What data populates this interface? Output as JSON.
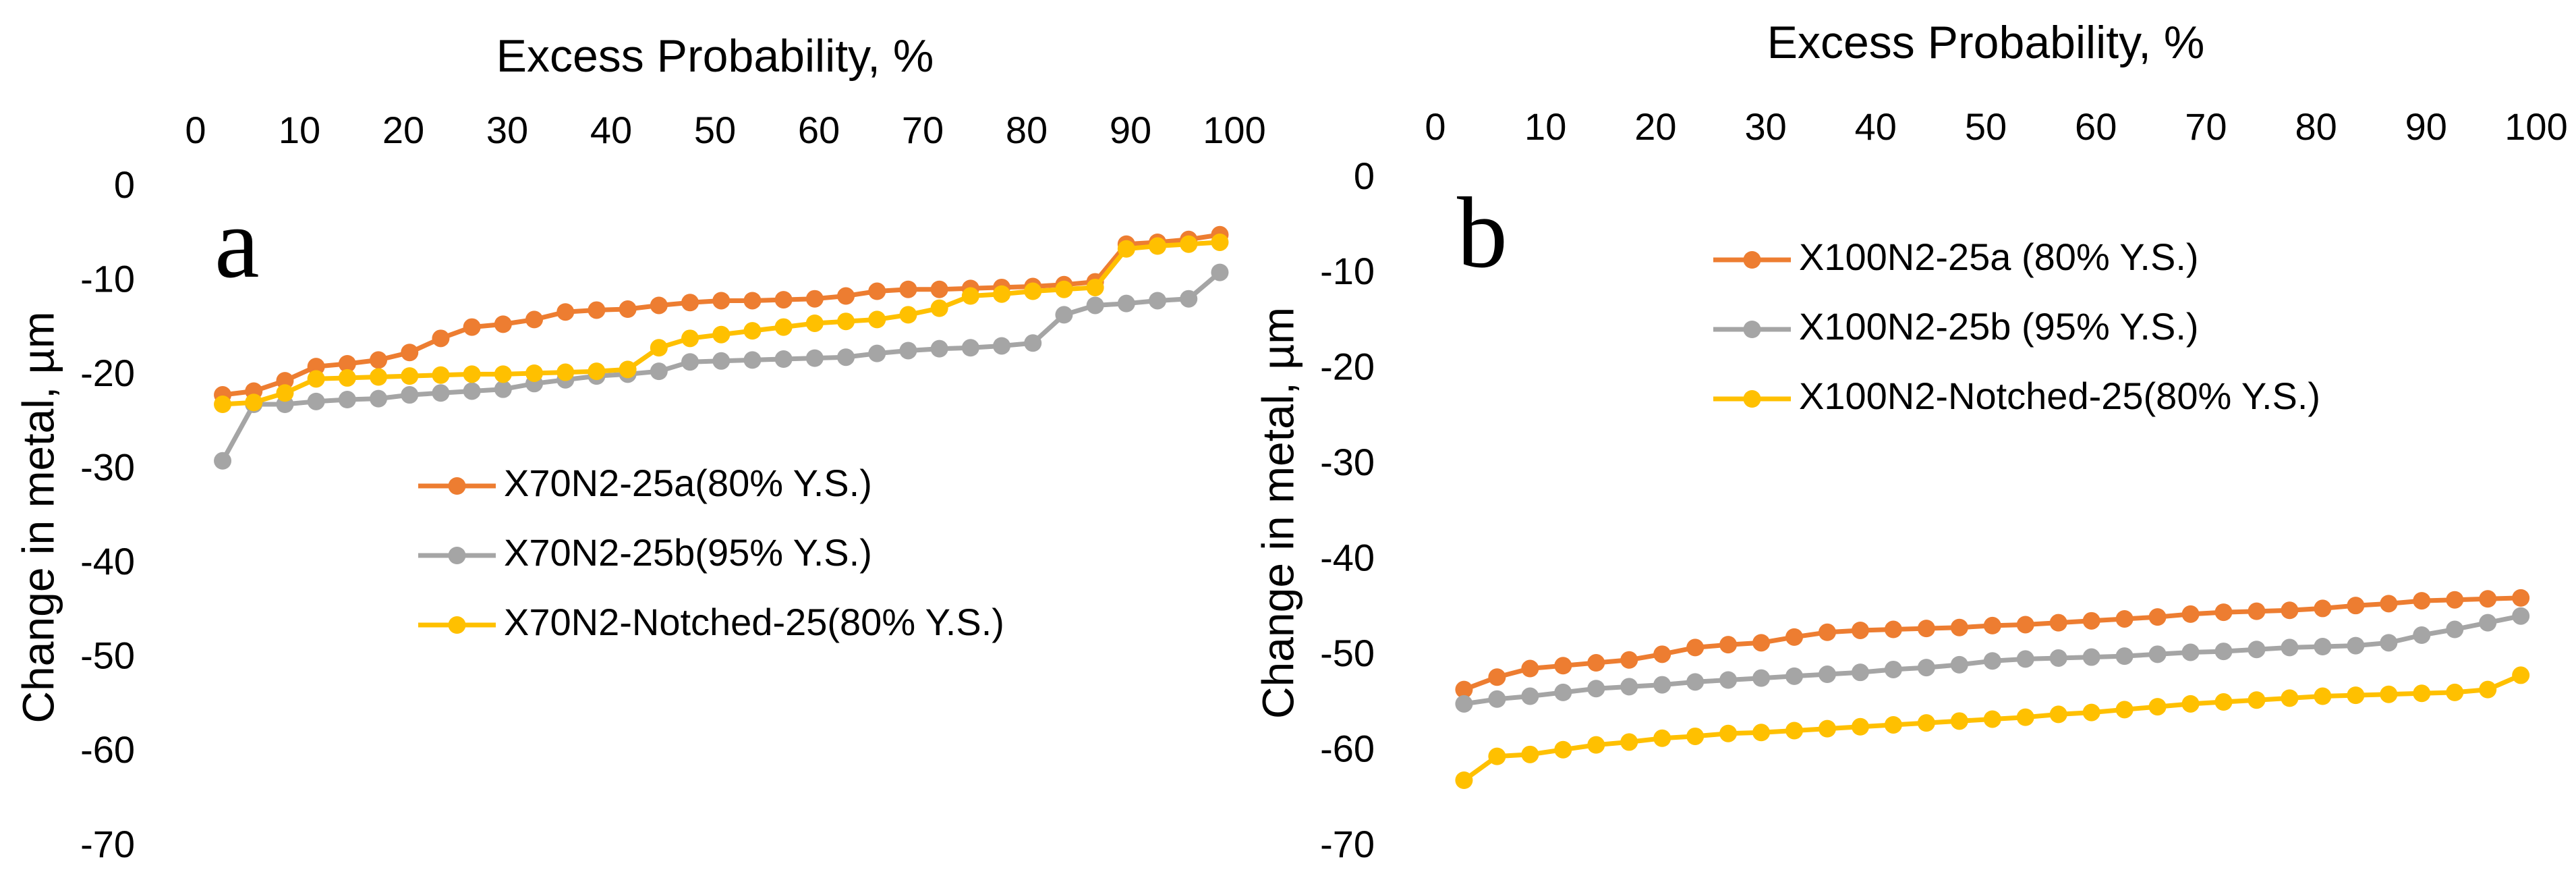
{
  "chart_data": [
    {
      "type": "line",
      "panel_label": "a",
      "xlabel": "Excess Probability, %",
      "ylabel": "Change in metal, µm",
      "xlim": [
        0,
        100
      ],
      "ylim": [
        -70,
        0
      ],
      "x_ticks": [
        "0",
        "10",
        "20",
        "30",
        "40",
        "50",
        "60",
        "70",
        "80",
        "90",
        "100"
      ],
      "y_ticks": [
        "0",
        "-10",
        "-20",
        "-30",
        "-40",
        "-50",
        "-60",
        "-70"
      ],
      "grid": false,
      "legend_position": "center",
      "x": [
        2.6,
        5.6,
        8.6,
        11.6,
        14.6,
        17.6,
        20.6,
        23.6,
        26.6,
        29.6,
        32.6,
        35.6,
        38.6,
        41.6,
        44.6,
        47.6,
        50.6,
        53.6,
        56.6,
        59.6,
        62.6,
        65.6,
        68.6,
        71.6,
        74.6,
        77.6,
        80.6,
        83.6,
        86.6,
        89.6,
        92.6,
        95.6,
        98.6
      ],
      "series": [
        {
          "name": "X70N2-25a(80% Y.S.)",
          "color": "#ED7D31",
          "values": [
            -22,
            -21.6,
            -20.5,
            -19,
            -18.7,
            -18.3,
            -17.5,
            -16,
            -14.8,
            -14.5,
            -14,
            -13.2,
            -13,
            -12.9,
            -12.5,
            -12.2,
            -12,
            -12,
            -11.9,
            -11.8,
            -11.5,
            -11,
            -10.8,
            -10.8,
            -10.7,
            -10.6,
            -10.5,
            -10.3,
            -10,
            -6,
            -5.8,
            -5.5,
            -5
          ]
        },
        {
          "name": "X70N2-25b(95% Y.S.)",
          "color": "#A5A5A5",
          "values": [
            -29,
            -23,
            -23,
            -22.7,
            -22.5,
            -22.4,
            -22,
            -21.8,
            -21.6,
            -21.4,
            -20.8,
            -20.4,
            -20,
            -19.8,
            -19.5,
            -18.5,
            -18.4,
            -18.3,
            -18.2,
            -18.1,
            -18,
            -17.6,
            -17.3,
            -17.1,
            -17,
            -16.8,
            -16.5,
            -13.5,
            -12.5,
            -12.3,
            -12,
            -11.8,
            -9
          ]
        },
        {
          "name": "X70N2-Notched-25(80% Y.S.)",
          "color": "#FFC000",
          "values": [
            -23,
            -22.8,
            -21.8,
            -20.3,
            -20.2,
            -20.1,
            -20,
            -19.9,
            -19.8,
            -19.8,
            -19.7,
            -19.6,
            -19.5,
            -19.3,
            -17,
            -16,
            -15.6,
            -15.2,
            -14.8,
            -14.4,
            -14.2,
            -14,
            -13.5,
            -12.8,
            -11.5,
            -11.3,
            -11,
            -10.8,
            -10.6,
            -6.5,
            -6.2,
            -6,
            -5.8
          ]
        }
      ]
    },
    {
      "type": "line",
      "panel_label": "b",
      "xlabel": "Excess Probability, %",
      "ylabel": "Change in metal, µm",
      "xlim": [
        0,
        100
      ],
      "ylim": [
        -70,
        0
      ],
      "x_ticks": [
        "0",
        "10",
        "20",
        "30",
        "40",
        "50",
        "60",
        "70",
        "80",
        "90",
        "100"
      ],
      "y_ticks": [
        "0",
        "-10",
        "-20",
        "-30",
        "-40",
        "-50",
        "-60",
        "-70"
      ],
      "grid": false,
      "legend_position": "top-center",
      "x": [
        2.6,
        5.6,
        8.6,
        11.6,
        14.6,
        17.6,
        20.6,
        23.6,
        26.6,
        29.6,
        32.6,
        35.6,
        38.6,
        41.6,
        44.6,
        47.6,
        50.6,
        53.6,
        56.6,
        59.6,
        62.6,
        65.6,
        68.6,
        71.6,
        74.6,
        77.6,
        80.6,
        83.6,
        86.6,
        89.6,
        92.6,
        95.6,
        98.6
      ],
      "series": [
        {
          "name": "X100N2-25a (80% Y.S.)",
          "color": "#ED7D31",
          "values": [
            -53.5,
            -52.2,
            -51.3,
            -51,
            -50.7,
            -50.4,
            -49.8,
            -49.1,
            -48.8,
            -48.6,
            -48,
            -47.5,
            -47.3,
            -47.2,
            -47.1,
            -47,
            -46.8,
            -46.7,
            -46.5,
            -46.3,
            -46.1,
            -45.9,
            -45.6,
            -45.4,
            -45.3,
            -45.2,
            -45,
            -44.7,
            -44.5,
            -44.2,
            -44.1,
            -44,
            -43.9
          ]
        },
        {
          "name": "X100N2-25b (95% Y.S.)",
          "color": "#A5A5A5",
          "values": [
            -55,
            -54.5,
            -54.2,
            -53.8,
            -53.4,
            -53.2,
            -53,
            -52.7,
            -52.5,
            -52.3,
            -52.1,
            -51.9,
            -51.7,
            -51.4,
            -51.2,
            -50.9,
            -50.5,
            -50.3,
            -50.2,
            -50.1,
            -50,
            -49.8,
            -49.6,
            -49.5,
            -49.3,
            -49.1,
            -49,
            -48.9,
            -48.6,
            -47.8,
            -47.2,
            -46.5,
            -45.8
          ]
        },
        {
          "name": "X100N2-Notched-25(80% Y.S.)",
          "color": "#FFC000",
          "values": [
            -63,
            -60.5,
            -60.3,
            -59.8,
            -59.3,
            -59,
            -58.6,
            -58.4,
            -58.1,
            -58,
            -57.8,
            -57.6,
            -57.4,
            -57.2,
            -57,
            -56.8,
            -56.6,
            -56.4,
            -56.1,
            -55.9,
            -55.6,
            -55.3,
            -55,
            -54.8,
            -54.6,
            -54.4,
            -54.2,
            -54.1,
            -54,
            -53.9,
            -53.8,
            -53.5,
            -52
          ]
        }
      ]
    }
  ]
}
